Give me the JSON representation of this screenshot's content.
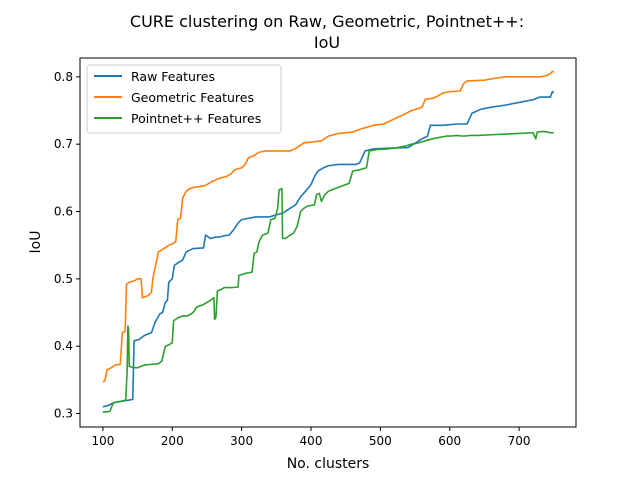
{
  "chart_data": {
    "type": "line",
    "title_line1": "CURE clustering on Raw, Geometric, Pointnet++:",
    "title_line2": "IoU",
    "xlabel": "No. clusters",
    "ylabel": "IoU",
    "xlim": [
      67,
      782
    ],
    "ylim": [
      0.28,
      0.828
    ],
    "xticks": [
      100,
      200,
      300,
      400,
      500,
      600,
      700
    ],
    "yticks": [
      0.3,
      0.4,
      0.5,
      0.6,
      0.7,
      0.8
    ],
    "grid": false,
    "legend_position": "upper-left",
    "series": [
      {
        "name": "Raw Features",
        "color": "#1f77b4",
        "points": [
          [
            100,
            0.31
          ],
          [
            108,
            0.312
          ],
          [
            115,
            0.316
          ],
          [
            125,
            0.318
          ],
          [
            138,
            0.32
          ],
          [
            143,
            0.321
          ],
          [
            145,
            0.408
          ],
          [
            152,
            0.41
          ],
          [
            160,
            0.416
          ],
          [
            170,
            0.42
          ],
          [
            175,
            0.435
          ],
          [
            182,
            0.448
          ],
          [
            186,
            0.45
          ],
          [
            190,
            0.465
          ],
          [
            193,
            0.468
          ],
          [
            195,
            0.495
          ],
          [
            200,
            0.5
          ],
          [
            203,
            0.52
          ],
          [
            210,
            0.525
          ],
          [
            215,
            0.528
          ],
          [
            220,
            0.54
          ],
          [
            230,
            0.545
          ],
          [
            245,
            0.546
          ],
          [
            248,
            0.565
          ],
          [
            255,
            0.56
          ],
          [
            262,
            0.562
          ],
          [
            268,
            0.562
          ],
          [
            275,
            0.564
          ],
          [
            282,
            0.565
          ],
          [
            290,
            0.575
          ],
          [
            295,
            0.583
          ],
          [
            300,
            0.588
          ],
          [
            310,
            0.59
          ],
          [
            320,
            0.592
          ],
          [
            340,
            0.592
          ],
          [
            350,
            0.595
          ],
          [
            360,
            0.598
          ],
          [
            370,
            0.605
          ],
          [
            378,
            0.61
          ],
          [
            385,
            0.622
          ],
          [
            392,
            0.63
          ],
          [
            400,
            0.64
          ],
          [
            405,
            0.652
          ],
          [
            410,
            0.66
          ],
          [
            418,
            0.665
          ],
          [
            425,
            0.668
          ],
          [
            440,
            0.67
          ],
          [
            465,
            0.67
          ],
          [
            470,
            0.672
          ],
          [
            478,
            0.69
          ],
          [
            490,
            0.693
          ],
          [
            510,
            0.694
          ],
          [
            540,
            0.695
          ],
          [
            560,
            0.708
          ],
          [
            568,
            0.712
          ],
          [
            572,
            0.728
          ],
          [
            590,
            0.728
          ],
          [
            610,
            0.73
          ],
          [
            625,
            0.73
          ],
          [
            632,
            0.746
          ],
          [
            645,
            0.752
          ],
          [
            660,
            0.755
          ],
          [
            680,
            0.758
          ],
          [
            700,
            0.762
          ],
          [
            720,
            0.766
          ],
          [
            730,
            0.77
          ],
          [
            745,
            0.77
          ],
          [
            748,
            0.778
          ],
          [
            750,
            0.777
          ]
        ]
      },
      {
        "name": "Geometric Features",
        "color": "#ff7f0e",
        "points": [
          [
            100,
            0.347
          ],
          [
            103,
            0.349
          ],
          [
            106,
            0.365
          ],
          [
            112,
            0.368
          ],
          [
            118,
            0.372
          ],
          [
            125,
            0.373
          ],
          [
            128,
            0.42
          ],
          [
            132,
            0.422
          ],
          [
            134,
            0.492
          ],
          [
            138,
            0.495
          ],
          [
            145,
            0.497
          ],
          [
            150,
            0.5
          ],
          [
            155,
            0.5
          ],
          [
            157,
            0.472
          ],
          [
            165,
            0.475
          ],
          [
            170,
            0.48
          ],
          [
            172,
            0.5
          ],
          [
            176,
            0.52
          ],
          [
            180,
            0.54
          ],
          [
            188,
            0.545
          ],
          [
            195,
            0.55
          ],
          [
            200,
            0.552
          ],
          [
            205,
            0.555
          ],
          [
            208,
            0.588
          ],
          [
            212,
            0.59
          ],
          [
            215,
            0.62
          ],
          [
            220,
            0.63
          ],
          [
            225,
            0.634
          ],
          [
            232,
            0.636
          ],
          [
            245,
            0.638
          ],
          [
            250,
            0.64
          ],
          [
            258,
            0.645
          ],
          [
            265,
            0.648
          ],
          [
            270,
            0.65
          ],
          [
            278,
            0.652
          ],
          [
            285,
            0.656
          ],
          [
            290,
            0.662
          ],
          [
            300,
            0.665
          ],
          [
            305,
            0.67
          ],
          [
            310,
            0.68
          ],
          [
            318,
            0.683
          ],
          [
            325,
            0.688
          ],
          [
            335,
            0.69
          ],
          [
            355,
            0.69
          ],
          [
            370,
            0.69
          ],
          [
            380,
            0.695
          ],
          [
            390,
            0.702
          ],
          [
            400,
            0.703
          ],
          [
            415,
            0.705
          ],
          [
            425,
            0.712
          ],
          [
            440,
            0.716
          ],
          [
            460,
            0.718
          ],
          [
            470,
            0.722
          ],
          [
            480,
            0.725
          ],
          [
            490,
            0.728
          ],
          [
            505,
            0.73
          ],
          [
            515,
            0.735
          ],
          [
            525,
            0.74
          ],
          [
            530,
            0.742
          ],
          [
            545,
            0.75
          ],
          [
            552,
            0.752
          ],
          [
            560,
            0.755
          ],
          [
            565,
            0.767
          ],
          [
            575,
            0.768
          ],
          [
            580,
            0.77
          ],
          [
            590,
            0.776
          ],
          [
            600,
            0.778
          ],
          [
            615,
            0.779
          ],
          [
            620,
            0.79
          ],
          [
            625,
            0.794
          ],
          [
            650,
            0.795
          ],
          [
            660,
            0.797
          ],
          [
            680,
            0.8
          ],
          [
            700,
            0.8
          ],
          [
            730,
            0.8
          ],
          [
            740,
            0.802
          ],
          [
            745,
            0.805
          ],
          [
            748,
            0.808
          ],
          [
            750,
            0.807
          ]
        ]
      },
      {
        "name": "Pointnet++ Features",
        "color": "#2ca02c",
        "points": [
          [
            100,
            0.302
          ],
          [
            110,
            0.303
          ],
          [
            115,
            0.316
          ],
          [
            125,
            0.318
          ],
          [
            133,
            0.32
          ],
          [
            135,
            0.365
          ],
          [
            136,
            0.43
          ],
          [
            137,
            0.425
          ],
          [
            138,
            0.37
          ],
          [
            145,
            0.368
          ],
          [
            150,
            0.368
          ],
          [
            160,
            0.372
          ],
          [
            170,
            0.373
          ],
          [
            180,
            0.374
          ],
          [
            185,
            0.378
          ],
          [
            190,
            0.4
          ],
          [
            195,
            0.402
          ],
          [
            200,
            0.405
          ],
          [
            202,
            0.438
          ],
          [
            208,
            0.442
          ],
          [
            215,
            0.445
          ],
          [
            222,
            0.445
          ],
          [
            230,
            0.45
          ],
          [
            235,
            0.458
          ],
          [
            245,
            0.462
          ],
          [
            255,
            0.468
          ],
          [
            260,
            0.472
          ],
          [
            261,
            0.44
          ],
          [
            263,
            0.443
          ],
          [
            265,
            0.482
          ],
          [
            270,
            0.484
          ],
          [
            275,
            0.487
          ],
          [
            285,
            0.487
          ],
          [
            295,
            0.488
          ],
          [
            296,
            0.505
          ],
          [
            305,
            0.508
          ],
          [
            315,
            0.51
          ],
          [
            318,
            0.538
          ],
          [
            322,
            0.54
          ],
          [
            325,
            0.555
          ],
          [
            330,
            0.565
          ],
          [
            338,
            0.568
          ],
          [
            342,
            0.588
          ],
          [
            348,
            0.59
          ],
          [
            352,
            0.605
          ],
          [
            354,
            0.632
          ],
          [
            358,
            0.634
          ],
          [
            359,
            0.56
          ],
          [
            363,
            0.56
          ],
          [
            370,
            0.565
          ],
          [
            375,
            0.568
          ],
          [
            380,
            0.578
          ],
          [
            385,
            0.6
          ],
          [
            390,
            0.605
          ],
          [
            395,
            0.608
          ],
          [
            405,
            0.61
          ],
          [
            408,
            0.625
          ],
          [
            412,
            0.627
          ],
          [
            415,
            0.615
          ],
          [
            420,
            0.625
          ],
          [
            425,
            0.63
          ],
          [
            432,
            0.633
          ],
          [
            440,
            0.636
          ],
          [
            450,
            0.64
          ],
          [
            455,
            0.642
          ],
          [
            460,
            0.66
          ],
          [
            470,
            0.662
          ],
          [
            480,
            0.665
          ],
          [
            484,
            0.69
          ],
          [
            495,
            0.692
          ],
          [
            510,
            0.693
          ],
          [
            525,
            0.695
          ],
          [
            535,
            0.697
          ],
          [
            545,
            0.7
          ],
          [
            555,
            0.702
          ],
          [
            565,
            0.705
          ],
          [
            575,
            0.708
          ],
          [
            585,
            0.71
          ],
          [
            595,
            0.712
          ],
          [
            600,
            0.712
          ],
          [
            610,
            0.713
          ],
          [
            620,
            0.712
          ],
          [
            630,
            0.713
          ],
          [
            640,
            0.713
          ],
          [
            660,
            0.714
          ],
          [
            680,
            0.715
          ],
          [
            700,
            0.716
          ],
          [
            720,
            0.717
          ],
          [
            724,
            0.708
          ],
          [
            726,
            0.718
          ],
          [
            735,
            0.719
          ],
          [
            740,
            0.718
          ],
          [
            745,
            0.717
          ],
          [
            750,
            0.717
          ]
        ]
      }
    ]
  }
}
